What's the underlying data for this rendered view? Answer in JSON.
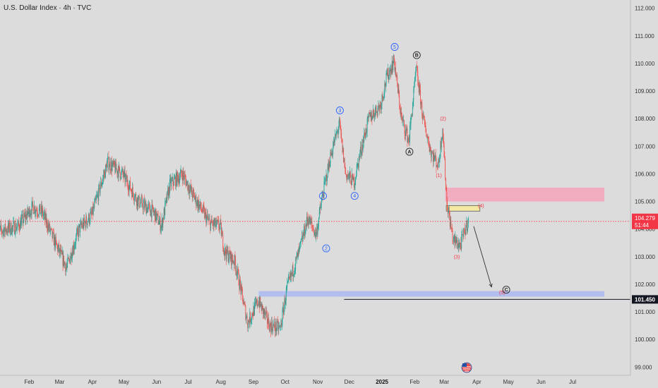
{
  "header": {
    "title": "U.S. Dollar Index · 4h · TVC"
  },
  "price_badge": {
    "price": "104.279",
    "countdown": "51:44",
    "color": "#f23645"
  },
  "level_badge": {
    "value": "101.450"
  },
  "colors": {
    "up": "#26a69a",
    "down": "#ef5350",
    "wave_blue": "#2962ff",
    "wave_red": "#f23645",
    "zone_red": "#f4a6bd",
    "zone_blue": "#aab8f0",
    "zone_yellow": "#f7eaa0"
  },
  "chart_data": {
    "type": "candlestick",
    "title": "U.S. Dollar Index · 4h · TVC",
    "ylim": [
      98.7,
      112.3
    ],
    "y_ticks": [
      "99.000",
      "100.000",
      "101.000",
      "102.000",
      "103.000",
      "104.000",
      "105.000",
      "106.000",
      "107.000",
      "108.000",
      "109.000",
      "110.000",
      "111.000",
      "112.000"
    ],
    "x_labels": [
      "Feb",
      "Mar",
      "Apr",
      "May",
      "Jun",
      "Jul",
      "Aug",
      "Sep",
      "Oct",
      "Nov",
      "Dec",
      "2025",
      "Feb",
      "Mar",
      "Apr",
      "May",
      "Jun",
      "Jul"
    ],
    "x_label_bold": "2025",
    "data_start": "2024-01-01",
    "data_end": "2025-03-24",
    "price_path": [
      [
        "2024-01-01",
        103.9
      ],
      [
        "2024-01-22",
        104.1
      ],
      [
        "2024-02-05",
        104.8
      ],
      [
        "2024-02-14",
        104.6
      ],
      [
        "2024-02-25",
        103.6
      ],
      [
        "2024-03-08",
        102.6
      ],
      [
        "2024-03-20",
        104.0
      ],
      [
        "2024-04-01",
        104.5
      ],
      [
        "2024-04-12",
        105.9
      ],
      [
        "2024-04-16",
        106.4
      ],
      [
        "2024-04-30",
        106.0
      ],
      [
        "2024-05-15",
        105.0
      ],
      [
        "2024-05-30",
        104.6
      ],
      [
        "2024-06-06",
        104.1
      ],
      [
        "2024-06-14",
        105.6
      ],
      [
        "2024-06-26",
        106.0
      ],
      [
        "2024-07-05",
        105.3
      ],
      [
        "2024-07-22",
        104.2
      ],
      [
        "2024-08-01",
        104.1
      ],
      [
        "2024-08-05",
        103.2
      ],
      [
        "2024-08-15",
        102.8
      ],
      [
        "2024-08-27",
        100.6
      ],
      [
        "2024-09-06",
        101.4
      ],
      [
        "2024-09-17",
        100.5
      ],
      [
        "2024-09-27",
        100.4
      ],
      [
        "2024-10-03",
        101.8
      ],
      [
        "2024-10-15",
        103.2
      ],
      [
        "2024-10-23",
        104.4
      ],
      [
        "2024-10-31",
        103.8
      ],
      [
        "2024-11-06",
        105.2
      ],
      [
        "2024-11-14",
        106.7
      ],
      [
        "2024-11-22",
        107.8
      ],
      [
        "2024-11-28",
        106.0
      ],
      [
        "2024-12-06",
        105.7
      ],
      [
        "2024-12-12",
        106.8
      ],
      [
        "2024-12-20",
        108.0
      ],
      [
        "2024-12-31",
        108.5
      ],
      [
        "2025-01-06",
        109.5
      ],
      [
        "2025-01-13",
        110.1
      ],
      [
        "2025-01-20",
        108.0
      ],
      [
        "2025-01-27",
        107.2
      ],
      [
        "2025-02-03",
        109.8
      ],
      [
        "2025-02-10",
        107.9
      ],
      [
        "2025-02-17",
        106.8
      ],
      [
        "2025-02-24",
        106.3
      ],
      [
        "2025-02-28",
        107.7
      ],
      [
        "2025-03-04",
        105.0
      ],
      [
        "2025-03-10",
        103.6
      ],
      [
        "2025-03-17",
        103.4
      ],
      [
        "2025-03-24",
        104.3
      ]
    ],
    "current_price": 104.279,
    "zones": [
      {
        "name": "supply",
        "x0": "2025-03-02",
        "x1": "2025-07-31",
        "y0": 105.0,
        "y1": 105.5,
        "color": "#f4a6bd"
      },
      {
        "name": "wave-4-target",
        "x0": "2025-03-03",
        "x1": "2025-04-04",
        "y0": 104.65,
        "y1": 104.85,
        "color": "#f7eaa0"
      },
      {
        "name": "demand",
        "x0": "2024-09-06",
        "x1": "2025-07-31",
        "y0": 101.55,
        "y1": 101.75,
        "color": "#aab8f0"
      }
    ],
    "level_line": {
      "value": 101.45,
      "x0": "2024-11-26"
    },
    "projection_arrow": {
      "x0": "2025-03-29",
      "y0": 104.1,
      "x1": "2025-04-15",
      "y1": 101.9
    },
    "wave_labels": [
      {
        "text": "1",
        "style": "blue-circle",
        "date": "2024-11-06",
        "y": 105.2
      },
      {
        "text": "2",
        "style": "blue-circle",
        "date": "2024-11-09",
        "y": 103.3
      },
      {
        "text": "3",
        "style": "blue-circle",
        "date": "2024-11-22",
        "y": 108.3
      },
      {
        "text": "4",
        "style": "blue-circle",
        "date": "2024-12-06",
        "y": 105.2
      },
      {
        "text": "5",
        "style": "blue-circle",
        "date": "2025-01-13",
        "y": 110.6
      },
      {
        "text": "A",
        "style": "black-circle",
        "date": "2025-01-27",
        "y": 106.8
      },
      {
        "text": "B",
        "style": "black-circle",
        "date": "2025-02-03",
        "y": 110.3
      },
      {
        "text": "(1)",
        "style": "red-text",
        "date": "2025-02-24",
        "y": 105.95
      },
      {
        "text": "(2)",
        "style": "red-text",
        "date": "2025-02-28",
        "y": 108.0
      },
      {
        "text": "(3)",
        "style": "red-text",
        "date": "2025-03-13",
        "y": 103.0
      },
      {
        "text": "(4)",
        "style": "red-text",
        "date": "2025-04-05",
        "y": 104.85
      },
      {
        "text": "(5)",
        "style": "red-text",
        "date": "2025-04-25",
        "y": 101.7
      },
      {
        "text": "C",
        "style": "black-circle",
        "date": "2025-04-29",
        "y": 101.8
      }
    ]
  }
}
